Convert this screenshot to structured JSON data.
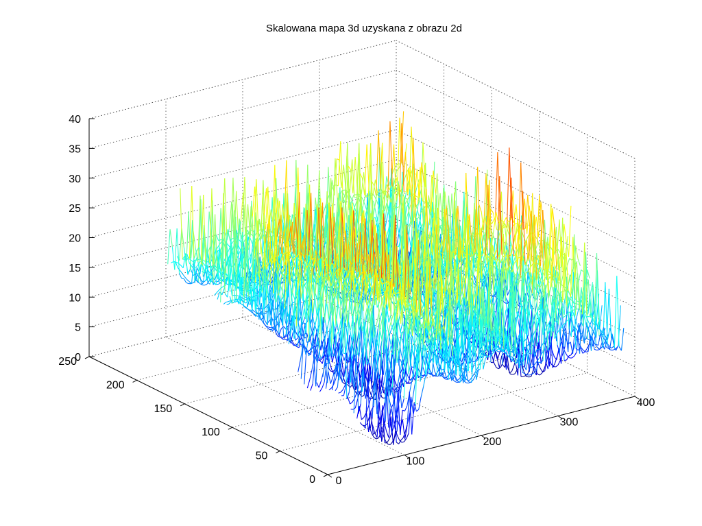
{
  "chart_data": {
    "type": "surface-mesh-3d",
    "title": "Skalowana mapa 3d uzyskana z obrazu 2d",
    "x_ticks": [
      "0",
      "100",
      "200",
      "300",
      "400"
    ],
    "y_ticks": [
      "0",
      "50",
      "100",
      "150",
      "200",
      "250"
    ],
    "z_ticks": [
      "0",
      "5",
      "10",
      "15",
      "20",
      "25",
      "30",
      "35",
      "40"
    ],
    "xlim": [
      0,
      400
    ],
    "ylim": [
      0,
      250
    ],
    "zlim": [
      0,
      40
    ],
    "grid": true,
    "colormap": [
      "#00008f",
      "#0000ff",
      "#0080ff",
      "#00ffff",
      "#80ff80",
      "#ffff00",
      "#ff8000",
      "#ff0000",
      "#800000"
    ],
    "z_range_shown": [
      0,
      37
    ],
    "z_range_typical": [
      3,
      30
    ]
  }
}
